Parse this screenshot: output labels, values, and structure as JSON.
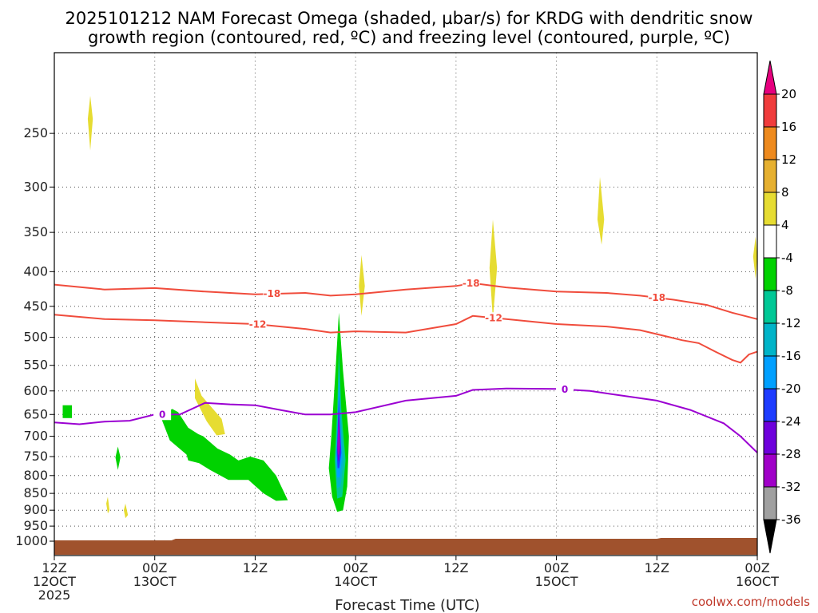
{
  "title": {
    "line1": "2025101212 NAM Forecast Omega (shaded, µbar/s) for KRDG with dendritic snow",
    "line2": "growth region (contoured, red, ºC) and freezing level (contoured, purple, ºC)"
  },
  "credit": "coolwx.com/models",
  "chart_data": {
    "type": "time-height cross section (filled contour + line contours)",
    "title": "2025101212 NAM Forecast Omega (shaded, µbar/s) for KRDG with dendritic snow growth region (contoured, red, ºC) and freezing level (contoured, purple, ºC)",
    "xlabel": "Forecast Time (UTC)",
    "ylabel": "",
    "x_unit": "forecast hour from 2025-10-12 12Z",
    "xlim": [
      0,
      84
    ],
    "y_unit": "pressure (hPa)",
    "ylim": [
      1050,
      190
    ],
    "y_scale": "log",
    "grid": true,
    "y_ticks": [
      250,
      300,
      350,
      400,
      450,
      500,
      550,
      600,
      650,
      700,
      750,
      800,
      850,
      900,
      950,
      1000
    ],
    "x_ticks": [
      {
        "hour": 0,
        "line1": "12Z",
        "line2": "12OCT",
        "line3": "2025"
      },
      {
        "hour": 12,
        "line1": "00Z",
        "line2": "13OCT",
        "line3": ""
      },
      {
        "hour": 24,
        "line1": "12Z",
        "line2": "",
        "line3": ""
      },
      {
        "hour": 36,
        "line1": "00Z",
        "line2": "14OCT",
        "line3": ""
      },
      {
        "hour": 48,
        "line1": "12Z",
        "line2": "",
        "line3": ""
      },
      {
        "hour": 60,
        "line1": "00Z",
        "line2": "15OCT",
        "line3": ""
      },
      {
        "hour": 72,
        "line1": "12Z",
        "line2": "",
        "line3": ""
      },
      {
        "hour": 84,
        "line1": "00Z",
        "line2": "16OCT",
        "line3": ""
      }
    ],
    "colorbar": {
      "unit": "µbar/s",
      "labels": [
        "20",
        "16",
        "12",
        "8",
        "4",
        "-4",
        "-8",
        "-12",
        "-16",
        "-20",
        "-24",
        "-28",
        "-32",
        "-36"
      ],
      "bins": [
        {
          "from": 16,
          "to": 20,
          "color": "#f03c3c"
        },
        {
          "from": 12,
          "to": 16,
          "color": "#ee8a1e"
        },
        {
          "from": 8,
          "to": 12,
          "color": "#e6b030"
        },
        {
          "from": 4,
          "to": 8,
          "color": "#e6dc32"
        },
        {
          "from": -4,
          "to": 4,
          "color": "#ffffff"
        },
        {
          "from": -8,
          "to": -4,
          "color": "#00d200"
        },
        {
          "from": -12,
          "to": -8,
          "color": "#00c896"
        },
        {
          "from": -16,
          "to": -12,
          "color": "#00b4c8"
        },
        {
          "from": -20,
          "to": -16,
          "color": "#00a0ff"
        },
        {
          "from": -24,
          "to": -20,
          "color": "#1e3cff"
        },
        {
          "from": -28,
          "to": -24,
          "color": "#6e00dc"
        },
        {
          "from": -32,
          "to": -28,
          "color": "#a000c8"
        },
        {
          "from": -36,
          "to": -32,
          "color": "#a0a0a0"
        }
      ],
      "over_color": "#e6007e",
      "under_color": "#000000"
    },
    "contours": [
      {
        "name": "minus18",
        "label": "-18",
        "color": "#f04c3c",
        "label_hours": [
          26,
          49.8,
          72
        ],
        "points": [
          [
            0,
            418
          ],
          [
            6,
            425
          ],
          [
            12,
            423
          ],
          [
            18,
            428
          ],
          [
            24,
            432
          ],
          [
            30,
            430
          ],
          [
            33,
            434
          ],
          [
            36,
            432
          ],
          [
            42,
            425
          ],
          [
            48,
            420
          ],
          [
            50,
            416
          ],
          [
            54,
            422
          ],
          [
            60,
            428
          ],
          [
            66,
            430
          ],
          [
            70,
            434
          ],
          [
            74,
            440
          ],
          [
            78,
            448
          ],
          [
            81,
            460
          ],
          [
            84,
            470
          ]
        ]
      },
      {
        "name": "minus12",
        "label": "-12",
        "color": "#f04c3c",
        "label_hours": [
          24.3,
          52.5
        ],
        "points": [
          [
            0,
            463
          ],
          [
            6,
            470
          ],
          [
            12,
            472
          ],
          [
            18,
            475
          ],
          [
            24,
            478
          ],
          [
            30,
            486
          ],
          [
            33,
            492
          ],
          [
            36,
            490
          ],
          [
            42,
            492
          ],
          [
            48,
            478
          ],
          [
            50,
            465
          ],
          [
            54,
            470
          ],
          [
            60,
            478
          ],
          [
            66,
            482
          ],
          [
            70,
            488
          ],
          [
            73,
            498
          ],
          [
            75,
            505
          ],
          [
            77,
            510
          ],
          [
            79,
            525
          ],
          [
            81,
            540
          ],
          [
            82,
            545
          ],
          [
            83,
            530
          ],
          [
            84,
            525
          ]
        ]
      },
      {
        "name": "zero",
        "label": "0",
        "color": "#9b00d2",
        "label_hours": [
          12.9,
          61
        ],
        "points": [
          [
            0,
            668
          ],
          [
            3,
            672
          ],
          [
            6,
            666
          ],
          [
            9,
            664
          ],
          [
            12,
            650
          ],
          [
            15,
            650
          ],
          [
            18,
            625
          ],
          [
            21,
            628
          ],
          [
            24,
            630
          ],
          [
            27,
            640
          ],
          [
            30,
            650
          ],
          [
            33,
            650
          ],
          [
            36,
            645
          ],
          [
            42,
            620
          ],
          [
            48,
            610
          ],
          [
            50,
            598
          ],
          [
            54,
            595
          ],
          [
            60,
            596
          ],
          [
            64,
            600
          ],
          [
            68,
            610
          ],
          [
            72,
            620
          ],
          [
            76,
            640
          ],
          [
            80,
            670
          ],
          [
            82,
            700
          ],
          [
            84,
            740
          ]
        ]
      }
    ],
    "omega_regions": [
      {
        "value_range": "4 to 8",
        "color": "#e6dc32",
        "points": [
          [
            4.3,
            220
          ],
          [
            4.6,
            238
          ],
          [
            4.3,
            265
          ],
          [
            4.0,
            238
          ]
        ]
      },
      {
        "value_range": "4 to 8",
        "color": "#e6dc32",
        "points": [
          [
            36.7,
            378
          ],
          [
            37.1,
            420
          ],
          [
            36.7,
            465
          ],
          [
            36.4,
            420
          ]
        ]
      },
      {
        "value_range": "4 to 8",
        "color": "#e6dc32",
        "points": [
          [
            52.4,
            335
          ],
          [
            52.9,
            395
          ],
          [
            52.4,
            470
          ],
          [
            52.0,
            395
          ]
        ]
      },
      {
        "value_range": "4 to 8",
        "color": "#e6dc32",
        "points": [
          [
            65.2,
            290
          ],
          [
            65.7,
            335
          ],
          [
            65.4,
            365
          ],
          [
            64.9,
            335
          ]
        ]
      },
      {
        "value_range": "4 to 8",
        "color": "#e6dc32",
        "points": [
          [
            83.8,
            355
          ],
          [
            84.0,
            380
          ],
          [
            83.8,
            410
          ],
          [
            83.5,
            380
          ]
        ]
      },
      {
        "value_range": "4 to 8",
        "color": "#e6dc32",
        "points": [
          [
            16.8,
            575
          ],
          [
            17.6,
            610
          ],
          [
            20.0,
            660
          ],
          [
            20.4,
            695
          ],
          [
            19.4,
            698
          ],
          [
            18.2,
            665
          ],
          [
            16.8,
            615
          ]
        ]
      },
      {
        "value_range": "4 to 8",
        "color": "#e6dc32",
        "points": [
          [
            6.4,
            860
          ],
          [
            6.6,
            900
          ],
          [
            6.4,
            910
          ],
          [
            6.2,
            880
          ]
        ]
      },
      {
        "value_range": "4 to 8",
        "color": "#e6dc32",
        "points": [
          [
            8.5,
            880
          ],
          [
            8.8,
            915
          ],
          [
            8.5,
            925
          ],
          [
            8.3,
            900
          ]
        ]
      },
      {
        "value_range": "-8 to -4",
        "color": "#00d200",
        "points": [
          [
            1.0,
            630
          ],
          [
            2.1,
            630
          ],
          [
            2.1,
            658
          ],
          [
            1.0,
            658
          ]
        ]
      },
      {
        "value_range": "-8 to -4",
        "color": "#00d200",
        "points": [
          [
            7.6,
            725
          ],
          [
            7.9,
            752
          ],
          [
            7.6,
            785
          ],
          [
            7.3,
            752
          ]
        ]
      },
      {
        "value_range": "-8 to -4",
        "color": "#00d200",
        "points": [
          [
            12.6,
            650
          ],
          [
            14.1,
            638
          ],
          [
            14.8,
            645
          ],
          [
            16.0,
            680
          ],
          [
            17.2,
            695
          ],
          [
            17.8,
            700
          ],
          [
            19.5,
            730
          ],
          [
            21.0,
            745
          ],
          [
            22.0,
            760
          ],
          [
            23.4,
            750
          ],
          [
            25.0,
            760
          ],
          [
            26.5,
            800
          ],
          [
            27.9,
            870
          ],
          [
            26.5,
            872
          ],
          [
            25.0,
            850
          ],
          [
            23.2,
            812
          ],
          [
            20.8,
            812
          ],
          [
            18.6,
            785
          ],
          [
            17.3,
            767
          ],
          [
            16.0,
            760
          ],
          [
            15.8,
            745
          ],
          [
            13.8,
            710
          ]
        ]
      },
      {
        "value_range": "-8 to -4",
        "color": "#00d200",
        "points": [
          [
            32.8,
            780
          ],
          [
            33.1,
            700
          ],
          [
            33.6,
            560
          ],
          [
            34.0,
            460
          ],
          [
            34.5,
            560
          ],
          [
            35.2,
            700
          ],
          [
            35.0,
            830
          ],
          [
            34.5,
            900
          ],
          [
            33.8,
            905
          ],
          [
            33.2,
            860
          ]
        ]
      },
      {
        "value_range": "-12 to -8",
        "color": "#00c896",
        "points": [
          [
            33.5,
            760
          ],
          [
            33.8,
            640
          ],
          [
            34.0,
            520
          ],
          [
            34.3,
            640
          ],
          [
            34.8,
            760
          ],
          [
            34.4,
            860
          ],
          [
            33.8,
            865
          ]
        ]
      },
      {
        "value_range": "-16 to -12",
        "color": "#00b4c8",
        "points": [
          [
            33.6,
            760
          ],
          [
            33.9,
            640
          ],
          [
            34.0,
            545
          ],
          [
            34.2,
            640
          ],
          [
            34.6,
            760
          ],
          [
            34.2,
            830
          ],
          [
            33.8,
            835
          ]
        ]
      },
      {
        "value_range": "-20 to -16",
        "color": "#00a0ff",
        "points": [
          [
            33.7,
            750
          ],
          [
            33.9,
            650
          ],
          [
            34.0,
            575
          ],
          [
            34.1,
            650
          ],
          [
            34.4,
            750
          ],
          [
            34.1,
            805
          ],
          [
            33.8,
            805
          ]
        ]
      },
      {
        "value_range": "-24 to -20",
        "color": "#1e3cff",
        "points": [
          [
            33.75,
            740
          ],
          [
            33.9,
            660
          ],
          [
            34.0,
            610
          ],
          [
            34.1,
            660
          ],
          [
            34.3,
            740
          ],
          [
            34.05,
            780
          ],
          [
            33.85,
            780
          ]
        ]
      },
      {
        "value_range": "-28 to -24",
        "color": "#6e00dc",
        "points": [
          [
            33.8,
            730
          ],
          [
            33.92,
            670
          ],
          [
            34.0,
            640
          ],
          [
            34.08,
            670
          ],
          [
            34.2,
            730
          ],
          [
            34.0,
            760
          ],
          [
            33.9,
            760
          ]
        ]
      },
      {
        "value_range": "-32 to -28",
        "color": "#a000c8",
        "points": [
          [
            33.82,
            720
          ],
          [
            33.95,
            675
          ],
          [
            34.0,
            655
          ],
          [
            34.05,
            675
          ],
          [
            34.15,
            720
          ],
          [
            34.0,
            745
          ],
          [
            33.9,
            745
          ]
        ]
      }
    ],
    "surface_band": {
      "color": "#a0522d",
      "top_hpa": 1000
    }
  }
}
